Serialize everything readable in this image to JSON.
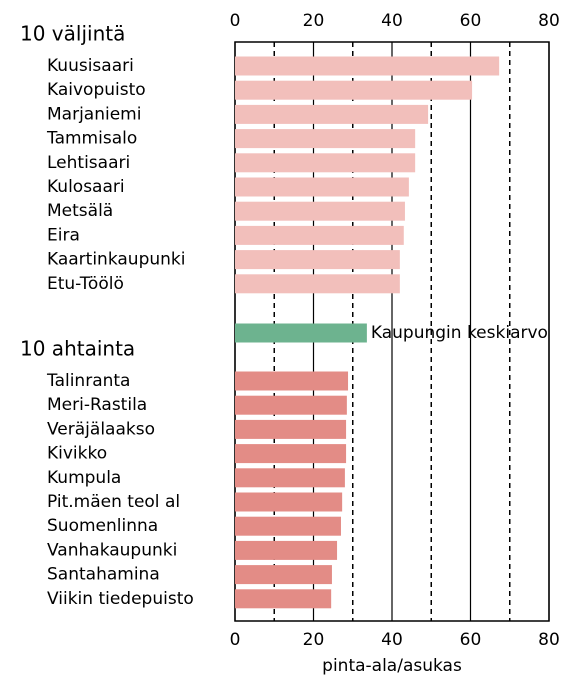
{
  "chart_data": {
    "type": "bar",
    "orientation": "horizontal",
    "xlabel": "pinta-ala/asukas",
    "xlim": [
      0,
      80
    ],
    "xticks": [
      0,
      20,
      40,
      60,
      80
    ],
    "xminor_grid": [
      10,
      30,
      50,
      70
    ],
    "groups": [
      {
        "title": "10 väljintä",
        "color": "#f2bfbb",
        "categories": [
          "Kuusisaari",
          "Kaivopuisto",
          "Marjaniemi",
          "Tammisalo",
          "Lehtisaari",
          "Kulosaari",
          "Metsälä",
          "Eira",
          "Kaartinkaupunki",
          "Etu-Töölö"
        ],
        "values": [
          67.3,
          60.4,
          49.2,
          45.9,
          45.9,
          44.3,
          43.3,
          43,
          42,
          42
        ]
      },
      {
        "color": "#6db38f",
        "categories": [
          "Kaupungin keskiarvo"
        ],
        "values": [
          33.6
        ]
      },
      {
        "title": "10 ahtainta",
        "color": "#e38c86",
        "categories": [
          "Talinranta",
          "Meri-Rastila",
          "Veräjälaakso",
          "Kivikko",
          "Kumpula",
          "Pit.mäen teol al",
          "Suomenlinna",
          "Vanhakaupunki",
          "Santahamina",
          "Viikin tiedepuisto"
        ],
        "values": [
          28.8,
          28.5,
          28.3,
          28.3,
          28,
          27.3,
          27,
          26,
          24.7,
          24.5
        ]
      }
    ]
  }
}
